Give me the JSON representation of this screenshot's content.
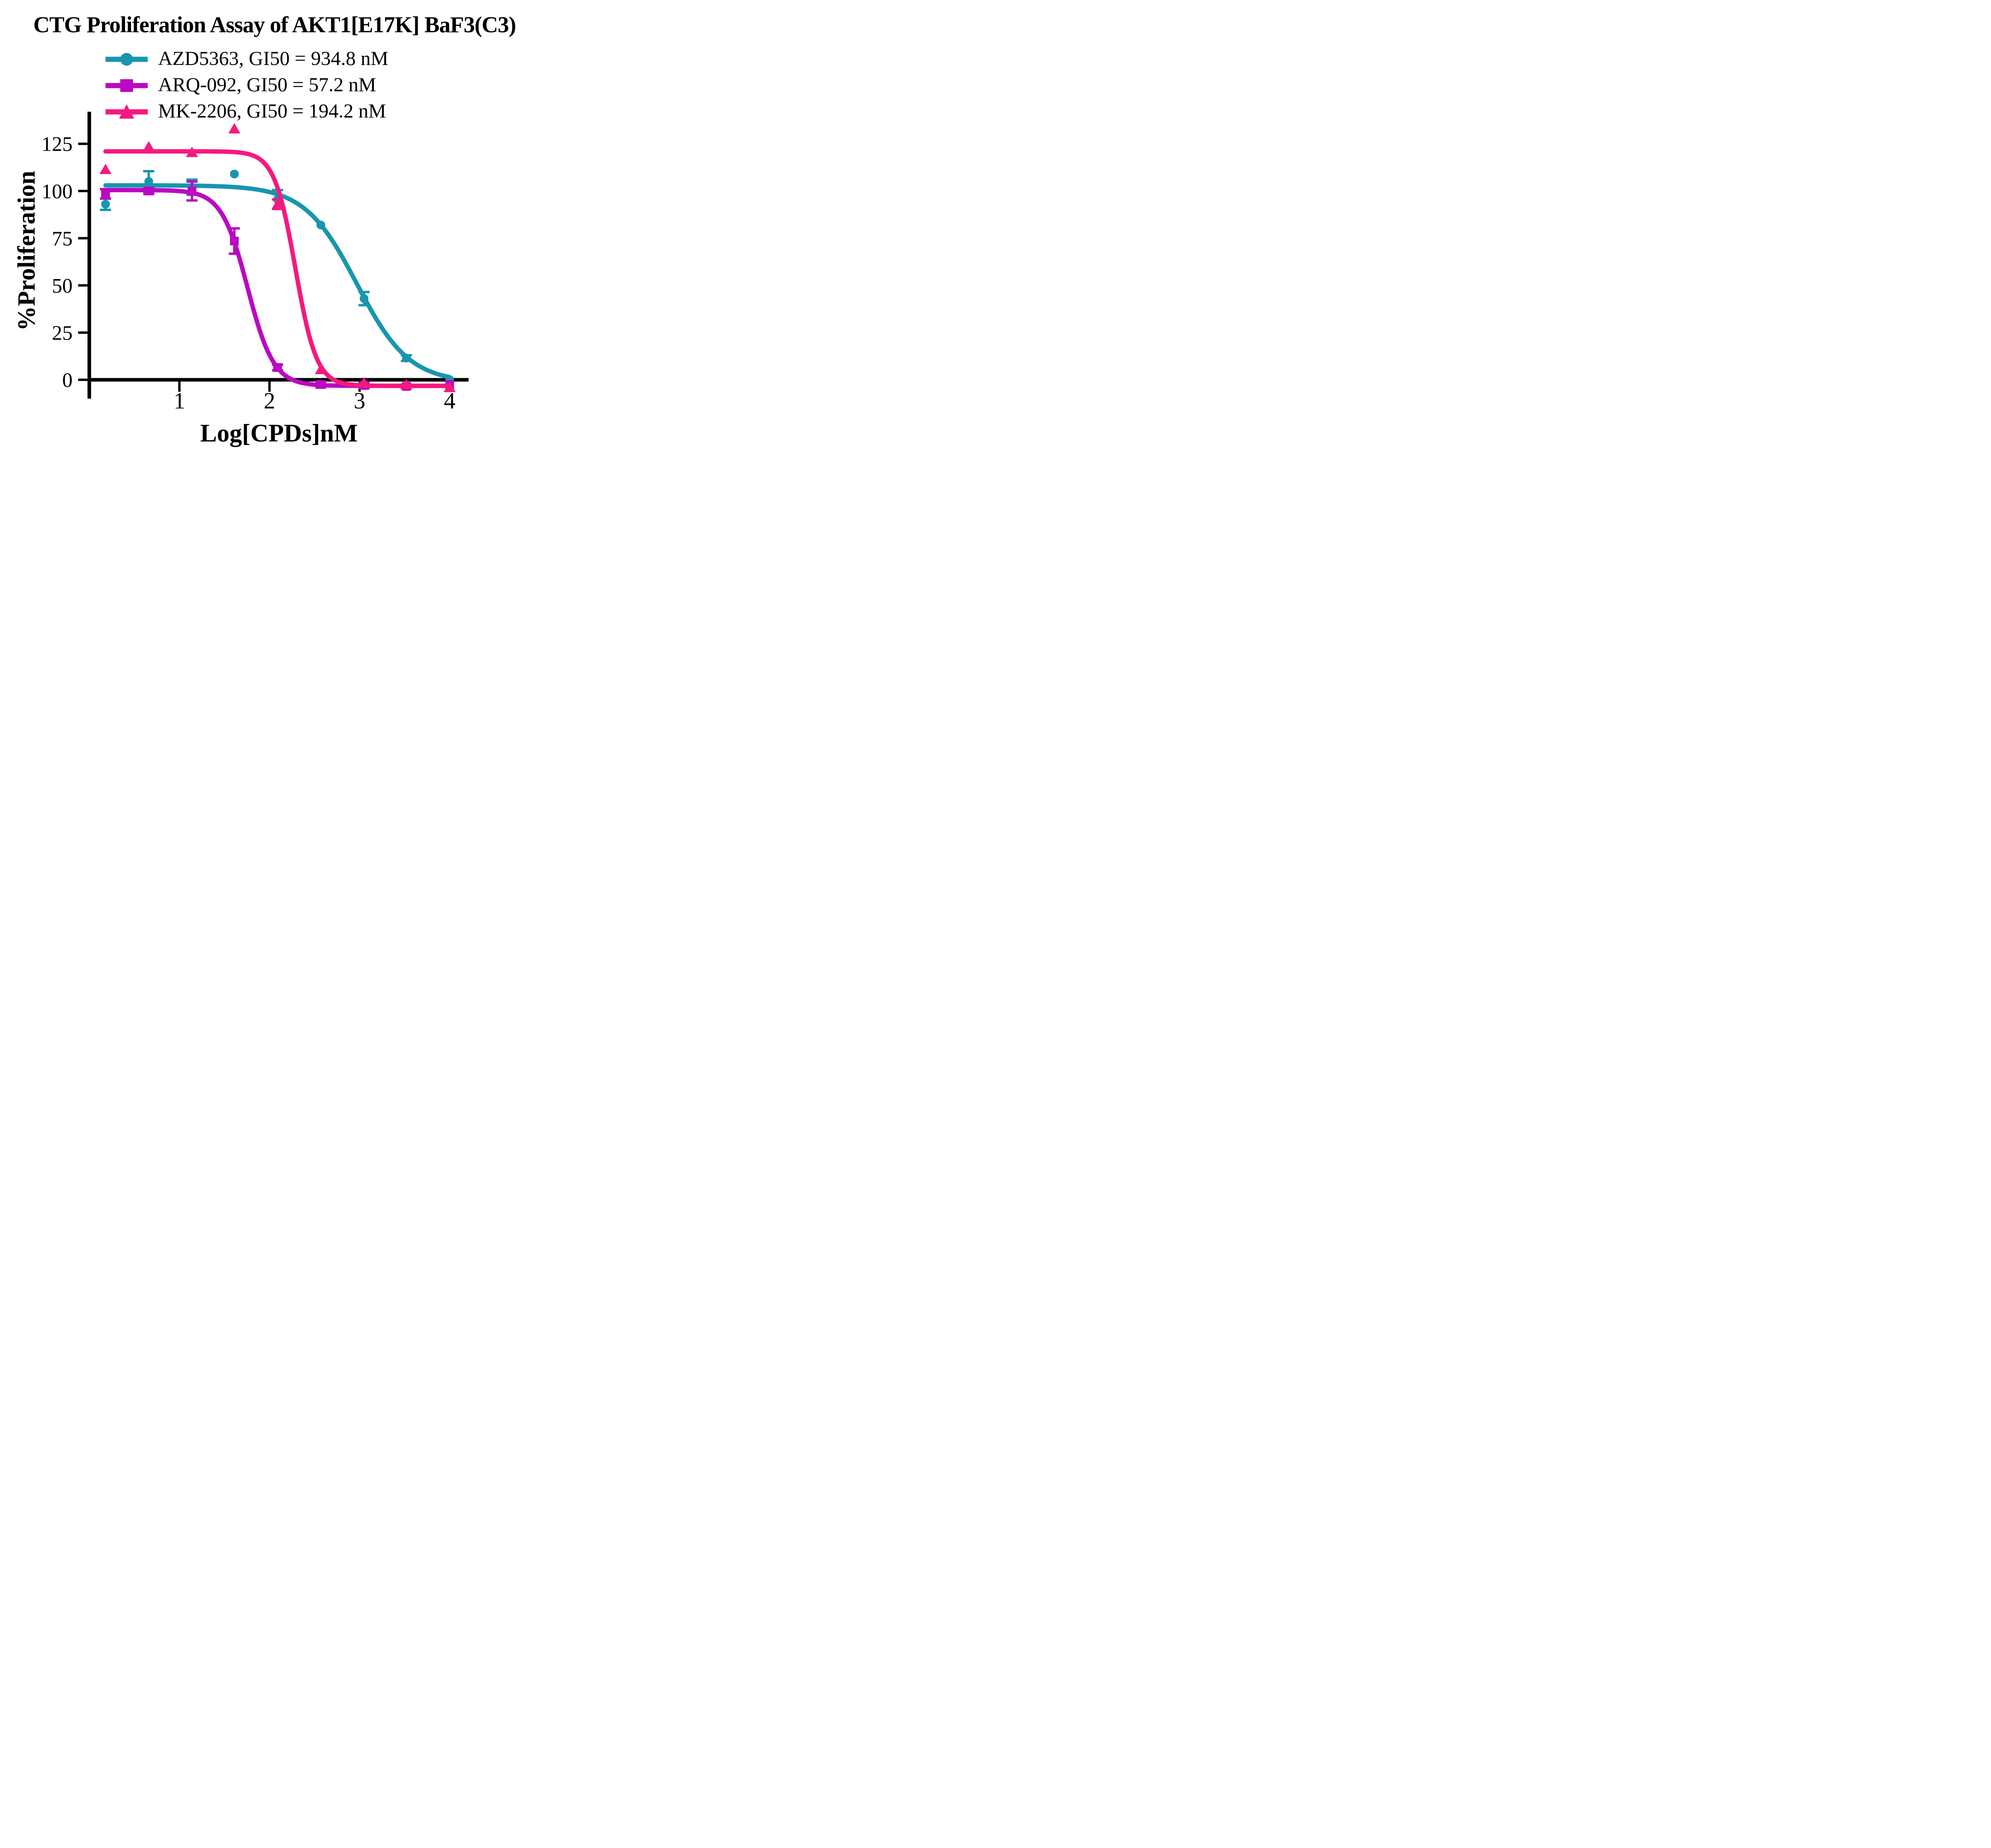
{
  "title": "CTG Proliferation Assay of AKT1[E17K] BaF3(C3)",
  "legend": [
    {
      "label": "AZD5363, GI50 = 934.8 nM",
      "marker": "circle",
      "color": "#1796AE"
    },
    {
      "label": "ARQ-092, GI50 = 57.2 nM",
      "marker": "square",
      "color": "#BB08C2"
    },
    {
      "label": "MK-2206, GI50 = 194.2 nM",
      "marker": "triangle",
      "color": "#F5197F"
    }
  ],
  "chart_data": {
    "type": "scatter",
    "title": "CTG Proliferation Assay of AKT1[E17K] BaF3(C3)",
    "xlabel": "Log[CPDs]nM",
    "ylabel": "%Proliferation",
    "x_ticks": [
      1,
      2,
      3,
      4
    ],
    "y_ticks": [
      0,
      25,
      50,
      75,
      100,
      125
    ],
    "xlim": [
      0,
      4.21
    ],
    "ylim": [
      -10,
      142
    ],
    "grid": false,
    "legend_position": "top-left",
    "x": [
      0.18,
      0.66,
      1.14,
      1.61,
      2.09,
      2.57,
      3.05,
      3.52,
      4.0
    ],
    "series": [
      {
        "name": "AZD5363",
        "gi50": "934.8 nM",
        "color": "#1796AE",
        "marker": "circle",
        "values": [
          93,
          105,
          102,
          109,
          95.5,
          82,
          43,
          11.5,
          0
        ],
        "errors": [
          3,
          5.5,
          4,
          0,
          5,
          0,
          3.5,
          1.5,
          0
        ],
        "fit": {
          "top": 103,
          "bottom": -1.5,
          "logGI50": 2.9707,
          "hill": -1.5
        }
      },
      {
        "name": "ARQ-092",
        "gi50": "57.2 nM",
        "color": "#BB08C2",
        "marker": "square",
        "values": [
          98.5,
          100,
          100,
          73.5,
          6.5,
          -2.5,
          -3,
          -3.5,
          -2.5
        ],
        "errors": [
          2.5,
          1.5,
          5,
          6.7,
          1.5,
          1.5,
          1.5,
          1,
          0
        ],
        "fit": {
          "top": 100.5,
          "bottom": -3.2,
          "logGI50": 1.7574,
          "hill": -3.0
        }
      },
      {
        "name": "MK-2206",
        "gi50": "194.2 nM",
        "color": "#F5197F",
        "marker": "triangle",
        "values": [
          111.5,
          123.5,
          120.5,
          133,
          93,
          5.5,
          -1.5,
          -2.5,
          -4
        ],
        "errors": [
          0,
          0,
          0,
          0,
          2.5,
          0,
          0,
          0,
          0
        ],
        "fit": {
          "top": 121,
          "bottom": -3.2,
          "logGI50": 2.2882,
          "hill": -3.7
        }
      }
    ]
  }
}
